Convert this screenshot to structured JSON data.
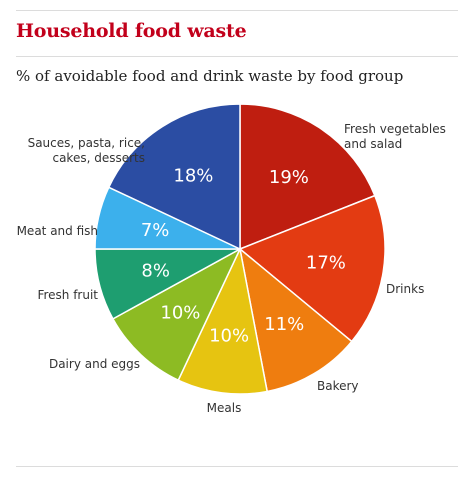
{
  "chart_data": {
    "type": "pie",
    "title": "Household food waste",
    "subtitle": "% of avoidable food and drink waste by food  group",
    "unit": "%",
    "slices": [
      {
        "label": [
          "Fresh vegetables",
          "and salad"
        ],
        "value": 19,
        "value_label": "19%",
        "color": "#bf1e10"
      },
      {
        "label": [
          "Drinks"
        ],
        "value": 17,
        "value_label": "17%",
        "color": "#e33b12"
      },
      {
        "label": [
          "Bakery"
        ],
        "value": 11,
        "value_label": "11%",
        "color": "#ef7d0f"
      },
      {
        "label": [
          "Meals"
        ],
        "value": 10,
        "value_label": "10%",
        "color": "#e6c411"
      },
      {
        "label": [
          "Dairy and eggs"
        ],
        "value": 10,
        "value_label": "10%",
        "color": "#8dbb23"
      },
      {
        "label": [
          "Fresh fruit"
        ],
        "value": 8,
        "value_label": "8%",
        "color": "#1e9e70"
      },
      {
        "label": [
          "Meat and fish"
        ],
        "value": 7,
        "value_label": "7%",
        "color": "#3cb0ec"
      },
      {
        "label": [
          "Sauces, pasta, rice,",
          "cakes, desserts"
        ],
        "value": 18,
        "value_label": "18%",
        "color": "#2b4da3"
      }
    ]
  }
}
